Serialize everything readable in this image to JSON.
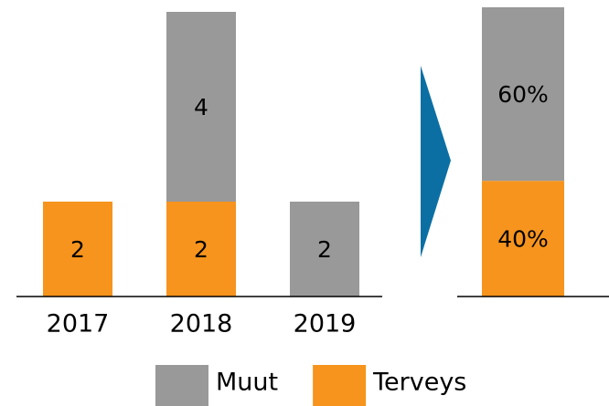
{
  "chart_data": [
    {
      "type": "stacked-bar",
      "categories": [
        "2017",
        "2018",
        "2019"
      ],
      "series": [
        {
          "name": "Muut",
          "color": "#999999",
          "values": [
            null,
            4,
            2
          ]
        },
        {
          "name": "Terveys",
          "color": "#f7941d",
          "values": [
            2,
            2,
            null
          ]
        }
      ],
      "ylim": [
        0,
        6
      ]
    },
    {
      "type": "stacked-bar-100",
      "series": [
        {
          "color": "#999999",
          "values": [
            60
          ],
          "value_labels": [
            "60%"
          ]
        },
        {
          "color": "#f7941d",
          "values": [
            40
          ],
          "value_labels": [
            "40%"
          ]
        }
      ],
      "ylim": [
        0,
        100
      ]
    }
  ]
}
